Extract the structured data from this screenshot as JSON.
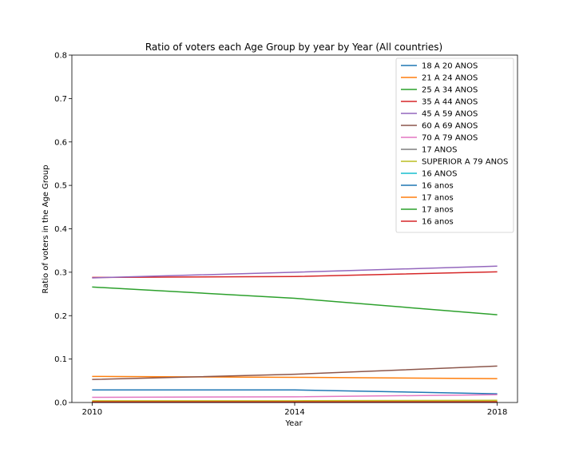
{
  "chart_data": {
    "type": "line",
    "title": "Ratio of voters each Age Group by year by Year (All countries)",
    "xlabel": "Year",
    "ylabel": "Ratio of voters in the Age Group",
    "x": [
      2010,
      2014,
      2018
    ],
    "xticks": [
      "2010",
      "2014",
      "2018"
    ],
    "yticks": [
      "0.0",
      "0.1",
      "0.2",
      "0.3",
      "0.4",
      "0.5",
      "0.6",
      "0.7",
      "0.8"
    ],
    "ylim": [
      0,
      0.8
    ],
    "grid": false,
    "legend_position": "top-right",
    "series": [
      {
        "name": "18 A 20 ANOS",
        "color": "#1f77b4",
        "values": [
          0.029,
          0.029,
          0.02
        ]
      },
      {
        "name": "21 A 24 ANOS",
        "color": "#ff7f0e",
        "values": [
          0.06,
          0.058,
          0.055
        ]
      },
      {
        "name": "25 A 34 ANOS",
        "color": "#2ca02c",
        "values": [
          0.266,
          0.24,
          0.202
        ]
      },
      {
        "name": "35 A 44 ANOS",
        "color": "#d62728",
        "values": [
          0.288,
          0.29,
          0.301
        ]
      },
      {
        "name": "45 A 59 ANOS",
        "color": "#9467bd",
        "values": [
          0.287,
          0.3,
          0.314
        ]
      },
      {
        "name": "60 A 69 ANOS",
        "color": "#8c564b",
        "values": [
          0.053,
          0.065,
          0.084
        ]
      },
      {
        "name": "70 A 79 ANOS",
        "color": "#e377c2",
        "values": [
          0.012,
          0.013,
          0.018
        ]
      },
      {
        "name": "17 ANOS",
        "color": "#7f7f7f",
        "values": [
          0.002,
          0.002,
          0.002
        ]
      },
      {
        "name": "SUPERIOR A 79 ANOS",
        "color": "#bcbd22",
        "values": [
          0.004,
          0.004,
          0.005
        ]
      },
      {
        "name": "16 ANOS",
        "color": "#17becf",
        "values": [
          0.001,
          0.001,
          0.001
        ]
      },
      {
        "name": "16 anos",
        "color": "#1f77b4",
        "values": [
          0.001,
          0.001,
          0.001
        ]
      },
      {
        "name": "17 anos",
        "color": "#ff7f0e",
        "values": [
          0.002,
          0.002,
          0.002
        ]
      },
      {
        "name": "17 anos",
        "color": "#2ca02c",
        "values": [
          0.001,
          0.001,
          0.001
        ]
      },
      {
        "name": "16 anos",
        "color": "#d62728",
        "values": [
          0.001,
          0.001,
          0.001
        ]
      }
    ]
  }
}
